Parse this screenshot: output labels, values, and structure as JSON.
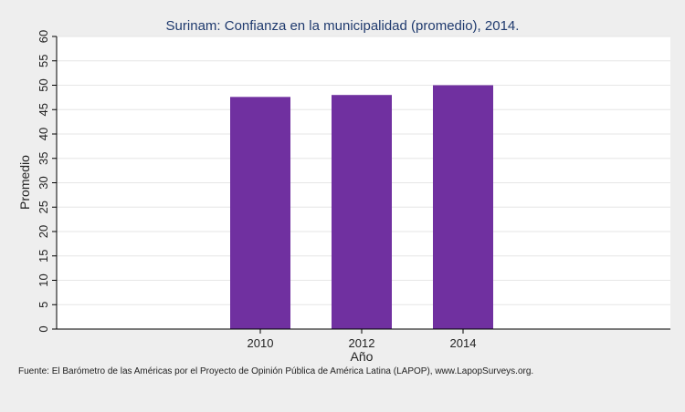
{
  "chart_data": {
    "type": "bar",
    "title": "Surinam: Confianza en la municipalidad (promedio), 2014.",
    "xlabel": "Año",
    "ylabel": "Promedio",
    "categories": [
      "2010",
      "2012",
      "2014"
    ],
    "values": [
      47.6,
      48.0,
      50.0
    ],
    "ylim": [
      0,
      60
    ],
    "yticks": [
      "0",
      "5",
      "10",
      "15",
      "20",
      "25",
      "30",
      "35",
      "40",
      "45",
      "50",
      "55",
      "60"
    ],
    "grid": true,
    "bar_color": "#7030a0",
    "source_note": "Fuente: El Barómetro de las Américas por el Proyecto de Opinión Pública de América Latina (LAPOP), www.LapopSurveys.org."
  }
}
